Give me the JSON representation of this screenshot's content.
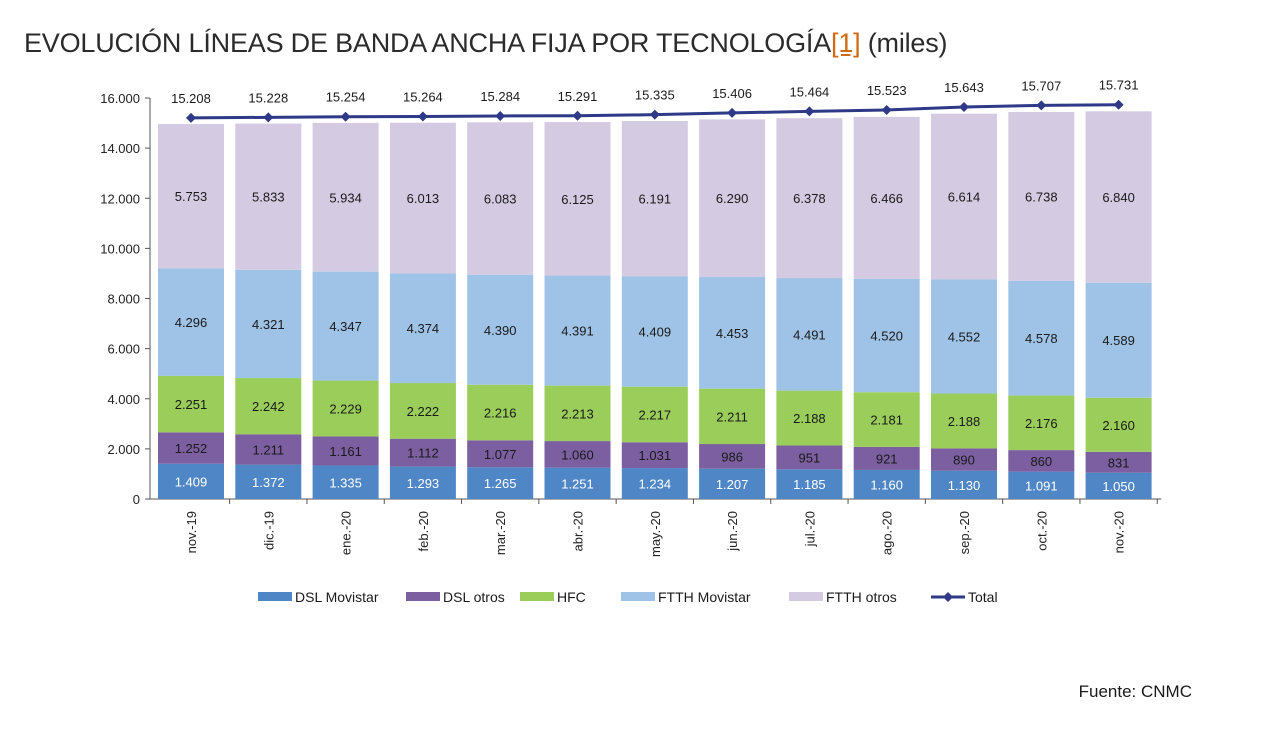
{
  "title": {
    "main": "EVOLUCIÓN LÍNEAS DE BANDA ANCHA FIJA POR TECNOLOGÍA",
    "ref": "[1]",
    "unit": " (miles)"
  },
  "source": "Fuente: CNMC",
  "chart_data": {
    "type": "bar",
    "stacked": true,
    "categories": [
      "nov.-19",
      "dic.-19",
      "ene.-20",
      "feb.-20",
      "mar.-20",
      "abr.-20",
      "may.-20",
      "jun.-20",
      "jul.-20",
      "ago.-20",
      "sep.-20",
      "oct.-20",
      "nov.-20"
    ],
    "ylim": [
      0,
      16000
    ],
    "yticks": [
      0,
      2000,
      4000,
      6000,
      8000,
      10000,
      12000,
      14000,
      16000
    ],
    "ytick_labels": [
      "0",
      "2.000",
      "4.000",
      "6.000",
      "8.000",
      "10.000",
      "12.000",
      "14.000",
      "16.000"
    ],
    "grid": false,
    "legend_position": "bottom",
    "series": [
      {
        "name": "DSL Movistar",
        "color": "#4f86c6",
        "values": [
          1409,
          1372,
          1335,
          1293,
          1265,
          1251,
          1234,
          1207,
          1185,
          1160,
          1130,
          1091,
          1050
        ],
        "labels": [
          "1.409",
          "1.372",
          "1.335",
          "1.293",
          "1.265",
          "1.251",
          "1.234",
          "1.207",
          "1.185",
          "1.160",
          "1.130",
          "1.091",
          "1.050"
        ]
      },
      {
        "name": "DSL otros",
        "color": "#7b5fa0",
        "values": [
          1252,
          1211,
          1161,
          1112,
          1077,
          1060,
          1031,
          986,
          951,
          921,
          890,
          860,
          831
        ],
        "labels": [
          "1.252",
          "1.211",
          "1.161",
          "1.112",
          "1.077",
          "1.060",
          "1.031",
          "986",
          "951",
          "921",
          "890",
          "860",
          "831"
        ]
      },
      {
        "name": "HFC",
        "color": "#9acd5a",
        "values": [
          2251,
          2242,
          2229,
          2222,
          2216,
          2213,
          2217,
          2211,
          2188,
          2181,
          2188,
          2176,
          2160
        ],
        "labels": [
          "2.251",
          "2.242",
          "2.229",
          "2.222",
          "2.216",
          "2.213",
          "2.217",
          "2.211",
          "2.188",
          "2.181",
          "2.188",
          "2.176",
          "2.160"
        ]
      },
      {
        "name": "FTTH Movistar",
        "color": "#9fc3e6",
        "values": [
          4296,
          4321,
          4347,
          4374,
          4390,
          4391,
          4409,
          4453,
          4491,
          4520,
          4552,
          4578,
          4589
        ],
        "labels": [
          "4.296",
          "4.321",
          "4.347",
          "4.374",
          "4.390",
          "4.391",
          "4.409",
          "4.453",
          "4.491",
          "4.520",
          "4.552",
          "4.578",
          "4.589"
        ]
      },
      {
        "name": "FTTH otros",
        "color": "#d4cbe2",
        "values": [
          5753,
          5833,
          5934,
          6013,
          6083,
          6125,
          6191,
          6290,
          6378,
          6466,
          6614,
          6738,
          6840
        ],
        "labels": [
          "5.753",
          "5.833",
          "5.934",
          "6.013",
          "6.083",
          "6.125",
          "6.191",
          "6.290",
          "6.378",
          "6.466",
          "6.614",
          "6.738",
          "6.840"
        ]
      }
    ],
    "total": {
      "name": "Total",
      "type": "line",
      "color": "#2e3a87",
      "values": [
        15208,
        15228,
        15254,
        15264,
        15284,
        15291,
        15335,
        15406,
        15464,
        15523,
        15643,
        15707,
        15731
      ],
      "labels": [
        "15.208",
        "15.228",
        "15.254",
        "15.264",
        "15.284",
        "15.291",
        "15.335",
        "15.406",
        "15.464",
        "15.523",
        "15.643",
        "15.707",
        "15.731"
      ]
    }
  }
}
